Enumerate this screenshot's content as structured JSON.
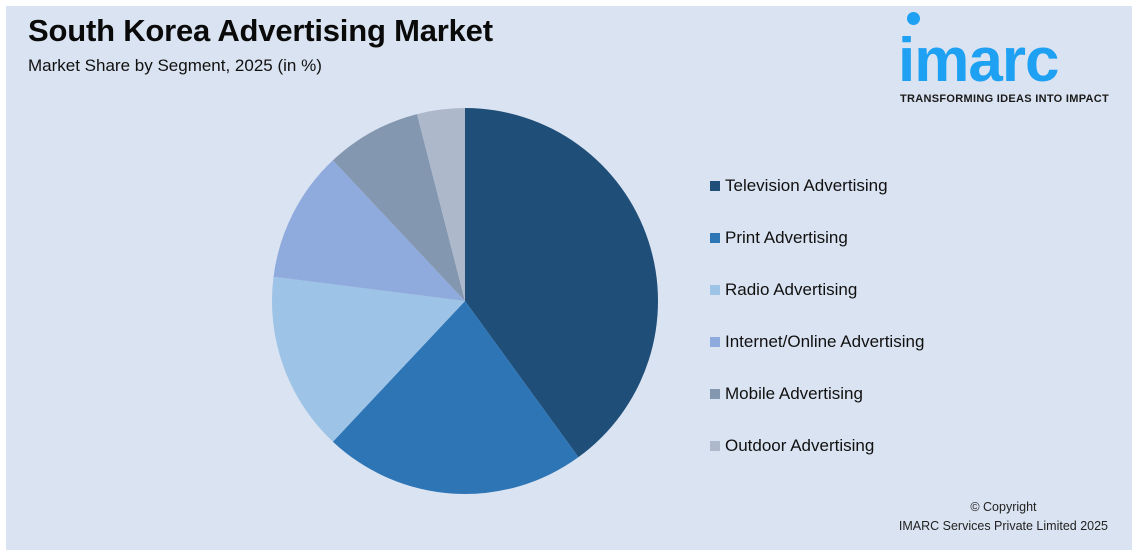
{
  "header": {
    "title": "South Korea Advertising Market",
    "subtitle": "Market Share by Segment, 2025 (in %)"
  },
  "logo": {
    "word": "imarc",
    "tagline": "TRANSFORMING IDEAS INTO IMPACT",
    "color": "#1ea1f2"
  },
  "footer": {
    "line1": "© Copyright",
    "line2": "IMARC Services Private Limited 2025"
  },
  "legend": [
    {
      "label": "Television Advertising",
      "color": "#1f4e79"
    },
    {
      "label": "Print Advertising",
      "color": "#2e75b6"
    },
    {
      "label": "Radio Advertising",
      "color": "#9dc3e6"
    },
    {
      "label": "Internet/Online Advertising",
      "color": "#8faadc"
    },
    {
      "label": "Mobile Advertising",
      "color": "#8497b0"
    },
    {
      "label": "Outdoor Advertising",
      "color": "#adb9ca"
    }
  ],
  "chart_data": {
    "type": "pie",
    "title": "South Korea Advertising Market",
    "subtitle": "Market Share by Segment, 2025 (in %)",
    "categories": [
      "Television Advertising",
      "Print Advertising",
      "Radio Advertising",
      "Internet/Online Advertising",
      "Mobile Advertising",
      "Outdoor Advertising"
    ],
    "values": [
      40,
      22,
      15,
      11,
      8,
      4
    ],
    "colors": [
      "#1f4e79",
      "#2e75b6",
      "#9dc3e6",
      "#8faadc",
      "#8497b0",
      "#adb9ca"
    ],
    "start_angle": "12 o'clock, clockwise",
    "legend_position": "right",
    "data_labels": false
  }
}
